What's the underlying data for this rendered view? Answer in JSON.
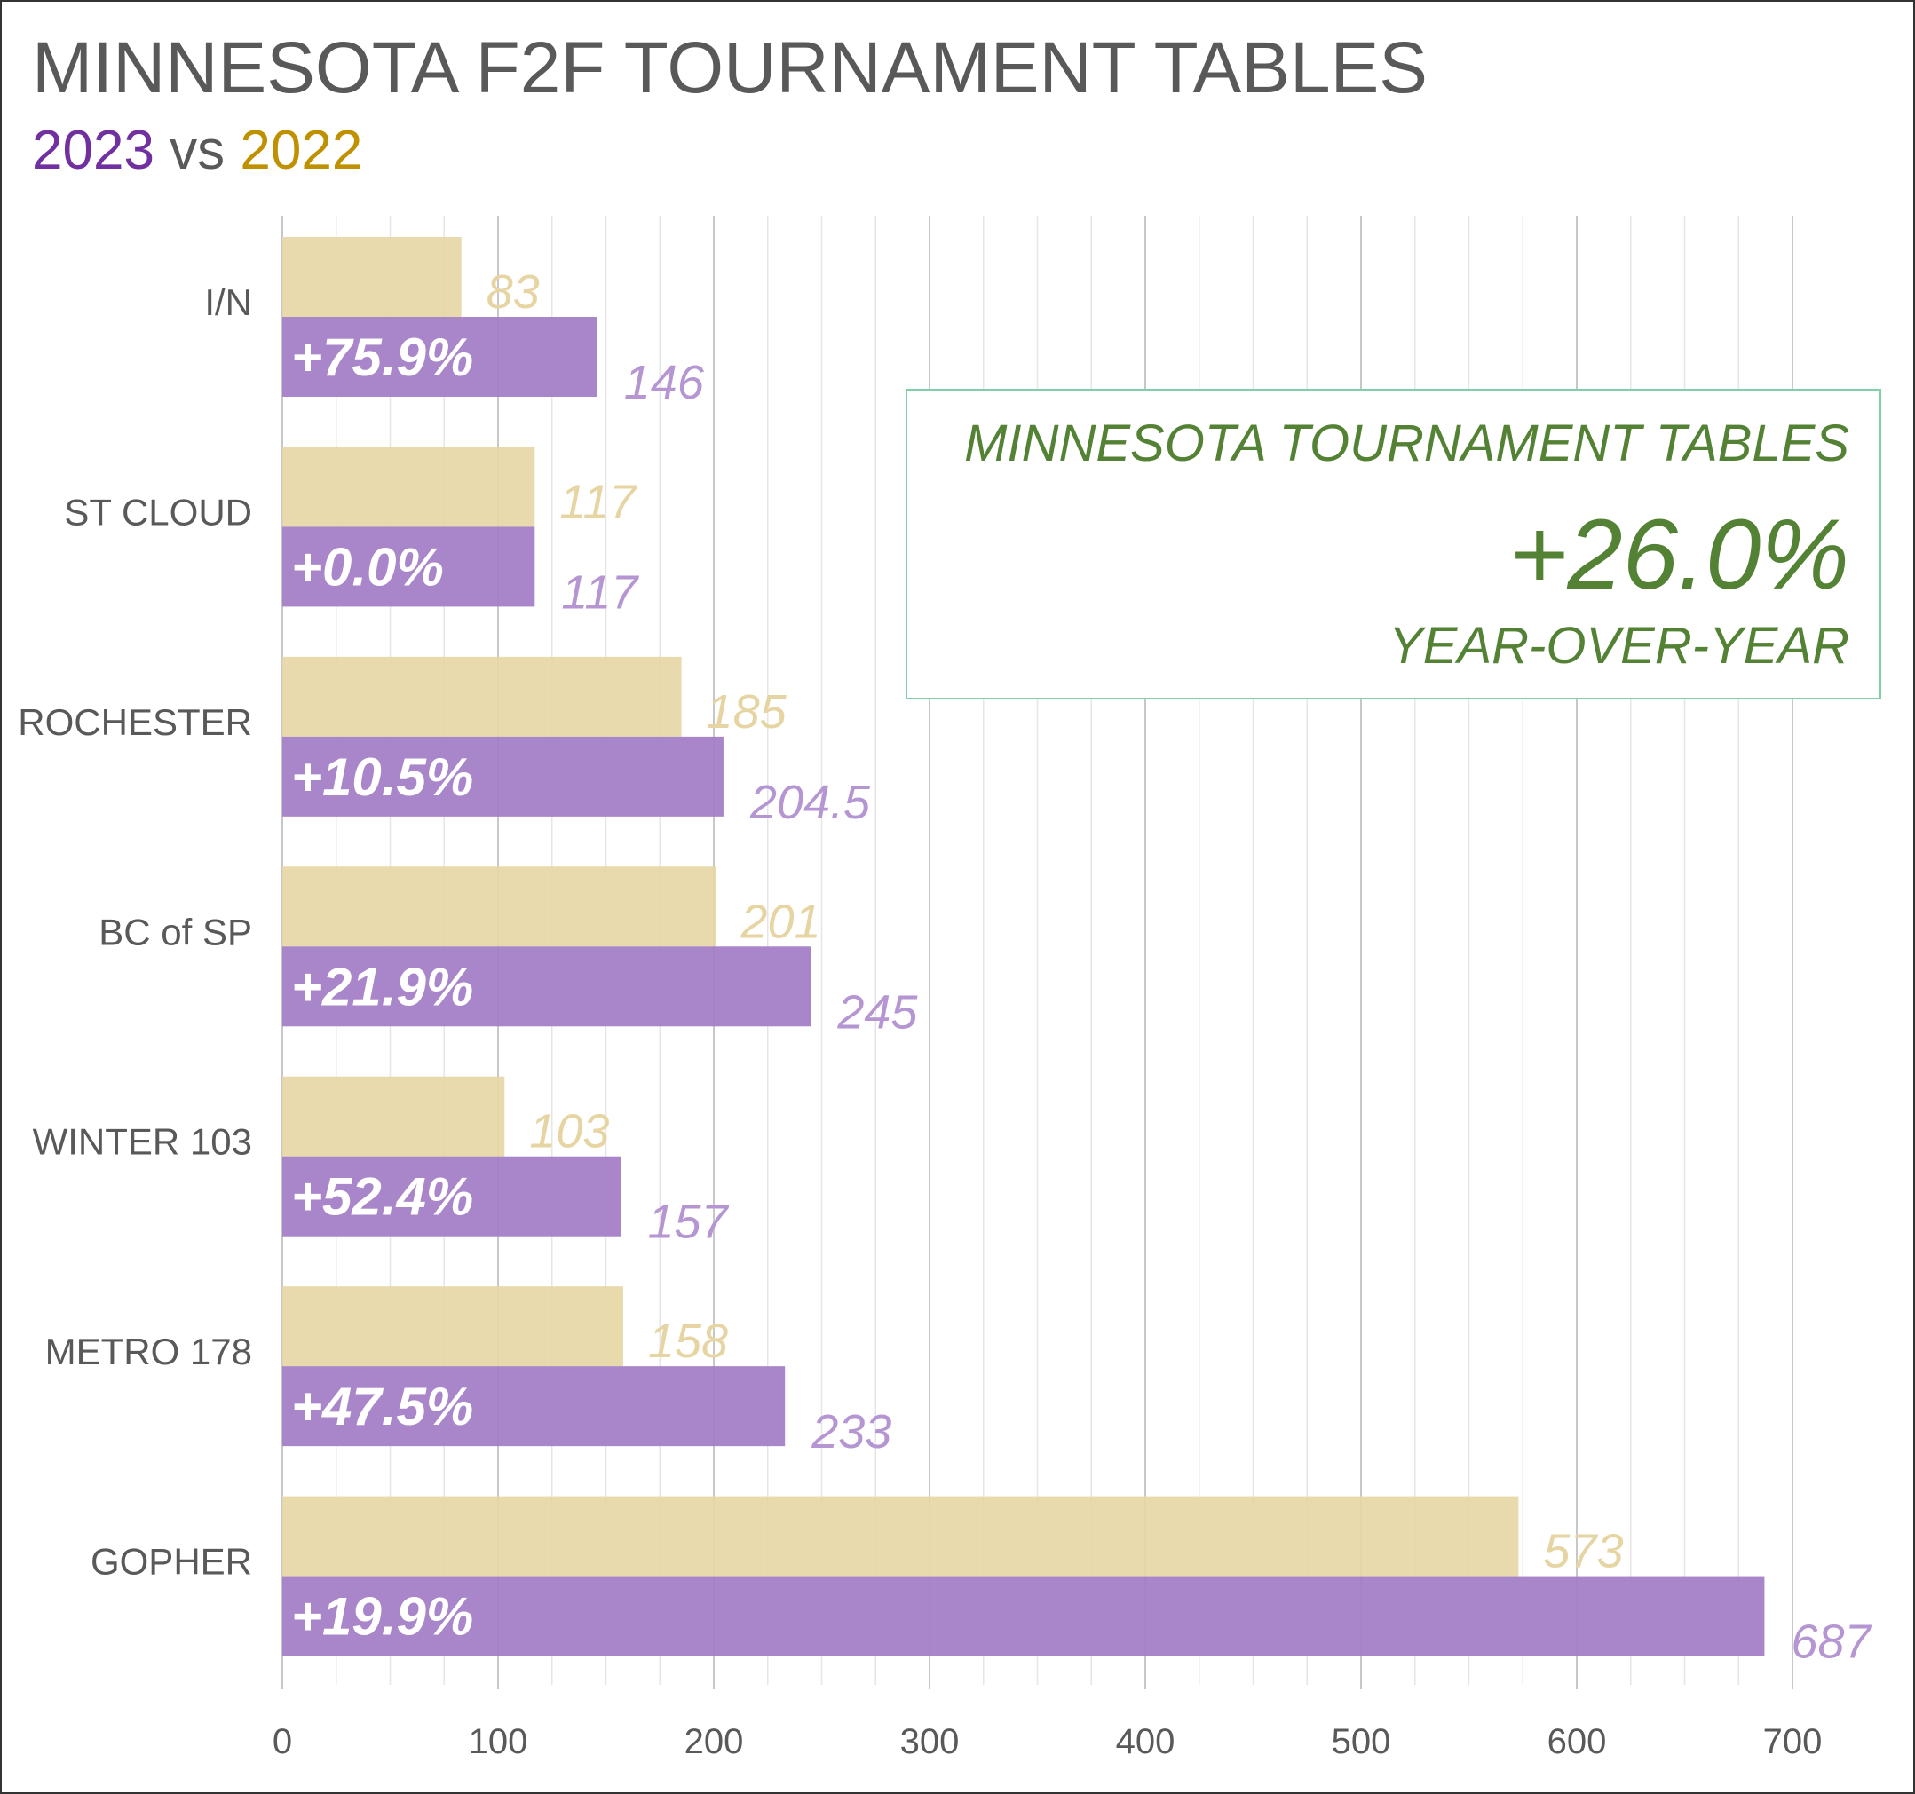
{
  "title": "MINNESOTA F2F TOURNAMENT TABLES",
  "subtitle": {
    "year_a": "2023",
    "connector": "vs",
    "year_b": "2022"
  },
  "colors": {
    "y2023": "#A47FC6",
    "y2022": "#E6D7A6",
    "title": "#595959",
    "accent_green": "#548235"
  },
  "summary": {
    "title": "MINNESOTA TOURNAMENT TABLES",
    "value": "+26.0%",
    "caption": "YEAR-OVER-YEAR"
  },
  "chart_data": {
    "type": "bar",
    "orientation": "horizontal",
    "categories": [
      "I/N",
      "ST CLOUD",
      "ROCHESTER",
      "BC of SP",
      "WINTER 103",
      "METRO 178",
      "GOPHER"
    ],
    "series": [
      {
        "name": "2022",
        "values": [
          83,
          117,
          185,
          201,
          103,
          158,
          573
        ]
      },
      {
        "name": "2023",
        "values": [
          146,
          117,
          204.5,
          245,
          157,
          233,
          687
        ]
      }
    ],
    "value_labels_2022": [
      "83",
      "117",
      "185",
      "201",
      "103",
      "158",
      "573"
    ],
    "value_labels_2023": [
      "146",
      "117",
      "204.5",
      "245",
      "157",
      "233",
      "687"
    ],
    "change_labels": [
      "+75.9%",
      "+0.0%",
      "+10.5%",
      "+21.9%",
      "+52.4%",
      "+47.5%",
      "+19.9%"
    ],
    "x_ticks": [
      "0",
      "100",
      "200",
      "300",
      "400",
      "500",
      "600",
      "700"
    ],
    "xlim": [
      0,
      700
    ],
    "major_step": 100,
    "minor_step": 25,
    "grid": true
  }
}
